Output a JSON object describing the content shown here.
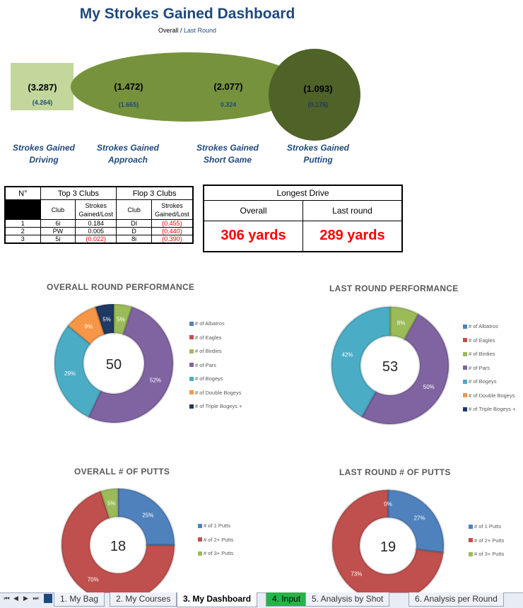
{
  "header": {
    "title": "My Strokes Gained Dashboard",
    "subtitle_overall": "Overall",
    "subtitle_sep": " / ",
    "subtitle_last": "Last Round"
  },
  "strokes_gained": [
    {
      "label_line1": "Strokes Gained",
      "label_line2": "Driving",
      "overall": "(3.287)",
      "last_round": "(4.264)"
    },
    {
      "label_line1": "Strokes Gained",
      "label_line2": "Approach",
      "overall": "(1.472)",
      "last_round": "(1.665)"
    },
    {
      "label_line1": "Strokes Gained",
      "label_line2": "Short Game",
      "overall": "(2.077)",
      "last_round": "0.324"
    },
    {
      "label_line1": "Strokes Gained",
      "label_line2": "Putting",
      "overall": "(1.093)",
      "last_round": "(0.176)"
    }
  ],
  "clubs_table": {
    "col_no": "N°",
    "top_header": "Top 3 Clubs",
    "flop_header": "Flop 3 Clubs",
    "club_label": "Club",
    "sg_label_1": "Strokes",
    "sg_label_2": "Gained/Lost",
    "rows": [
      {
        "n": "1",
        "top_club": "6i",
        "top_sg": "0.184",
        "flop_club": "DI",
        "flop_sg": "(0.455)"
      },
      {
        "n": "2",
        "top_club": "PW",
        "top_sg": "0.005",
        "flop_club": "D",
        "flop_sg": "(0.440)"
      },
      {
        "n": "3",
        "top_club": "5i",
        "top_sg": "(0.022)",
        "flop_club": "8i",
        "flop_sg": "(0.390)"
      }
    ]
  },
  "longest_drive": {
    "title": "Longest Drive",
    "overall_label": "Overall",
    "last_label": "Last round",
    "overall_value": "306 yards",
    "last_value": "289 yards"
  },
  "tabs": [
    {
      "label": "1. My Bag"
    },
    {
      "label": "2. My Courses"
    },
    {
      "label": "3. My Dashboard"
    },
    {
      "label": "4. Input"
    },
    {
      "label": "5. Analysis by Shot"
    },
    {
      "label": "6. Analysis per Round"
    }
  ],
  "nav_icons": [
    "first-sheet-icon",
    "prev-sheet-icon",
    "next-sheet-icon",
    "last-sheet-icon"
  ],
  "chart_data": [
    {
      "type": "pie",
      "title": "OVERALL ROUND PERFORMANCE",
      "center_label": "50",
      "categories": [
        "# of Albatros",
        "# of Eagles",
        "# of Birdies",
        "# of Pars",
        "# of Bogeys",
        "# of Double Bogeys",
        "# of Triple Bogeys +"
      ],
      "values": [
        0,
        0,
        5,
        52,
        29,
        9,
        5
      ],
      "data_labels": [
        "0%",
        "0%",
        "5%",
        "52%",
        "29%",
        "9%",
        "5%"
      ],
      "colors": [
        "#4f81bd",
        "#c0504d",
        "#9bbb59",
        "#8064a2",
        "#4bacc6",
        "#f79646",
        "#1f3864"
      ],
      "legend": "right"
    },
    {
      "type": "pie",
      "title": "LAST ROUND PERFORMANCE",
      "center_label": "53",
      "categories": [
        "# of Albatros",
        "# of Eagles",
        "# of Birdies",
        "# of Pars",
        "# of Bogeys",
        "# of Double Bogeys",
        "# of Triple Bogeys +"
      ],
      "values": [
        0,
        0,
        8,
        50,
        42,
        0,
        0
      ],
      "data_labels": [
        "0%",
        "",
        "8%",
        "50%",
        "42%",
        "",
        ""
      ],
      "colors": [
        "#4f81bd",
        "#c0504d",
        "#9bbb59",
        "#8064a2",
        "#4bacc6",
        "#f79646",
        "#1f3864"
      ],
      "legend": "right"
    },
    {
      "type": "pie",
      "title": "OVERALL # OF PUTTS",
      "center_label": "18",
      "categories": [
        "# of 1 Putts",
        "# of 2+ Putts",
        "# of 3+ Putts"
      ],
      "values": [
        25,
        70,
        5
      ],
      "data_labels": [
        "25%",
        "70%",
        "5%"
      ],
      "colors": [
        "#4f81bd",
        "#c0504d",
        "#9bbb59"
      ],
      "legend": "right"
    },
    {
      "type": "pie",
      "title": "LAST ROUND # OF PUTTS",
      "center_label": "19",
      "categories": [
        "# of 1 Putts",
        "# of 2+ Putts",
        "# of 3+ Putts"
      ],
      "values": [
        27,
        73,
        0
      ],
      "data_labels": [
        "27%",
        "73%",
        "0%"
      ],
      "colors": [
        "#4f81bd",
        "#c0504d",
        "#9bbb59"
      ],
      "legend": "right"
    }
  ]
}
